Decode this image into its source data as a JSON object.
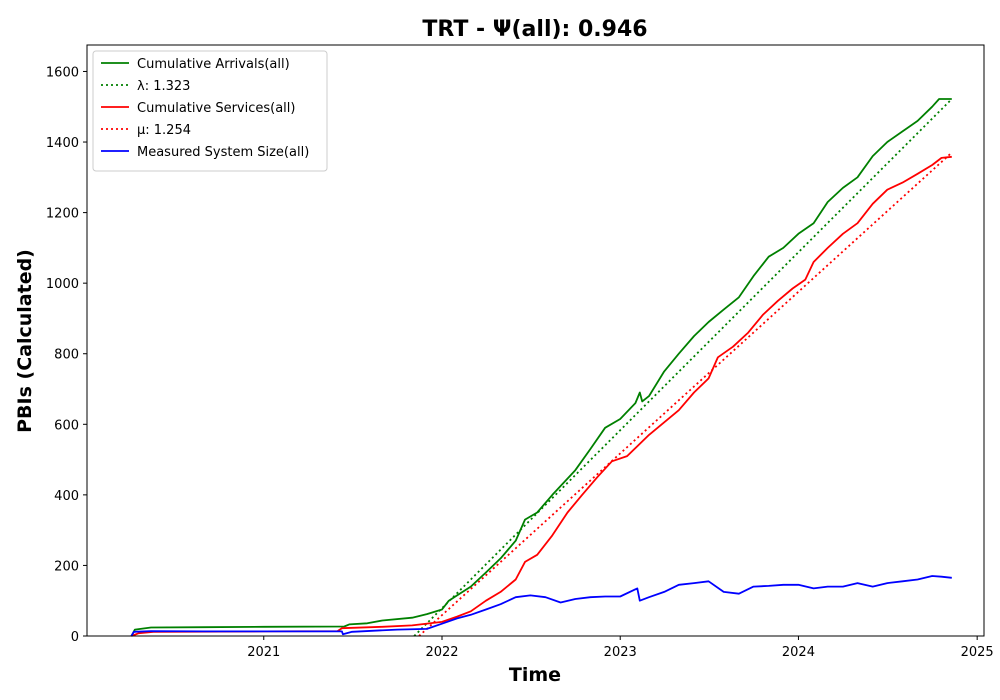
{
  "chart_data": {
    "type": "line",
    "title": "TRT -  Ψ(all): 0.946",
    "xlabel": "Time",
    "ylabel": "PBIs (Calculated)",
    "x_ticks": [
      "2021",
      "2022",
      "2023",
      "2024",
      "2025"
    ],
    "y_ticks": [
      "0",
      "200",
      "400",
      "600",
      "800",
      "1000",
      "1200",
      "1400",
      "1600"
    ],
    "xlim": [
      "2020-01-05",
      "2025-01-15"
    ],
    "ylim": [
      0,
      1675
    ],
    "grid": false,
    "legend_position": "upper-left",
    "series": [
      {
        "name": "Cumulative Arrivals(all)",
        "color": "#008000",
        "style": "solid",
        "points": [
          [
            "2020-04-05",
            0
          ],
          [
            "2020-04-12",
            18
          ],
          [
            "2020-05-15",
            24
          ],
          [
            "2020-09-01",
            25
          ],
          [
            "2021-01-01",
            26
          ],
          [
            "2021-06-15",
            27
          ],
          [
            "2021-06-25",
            33
          ],
          [
            "2021-08-01",
            36
          ],
          [
            "2021-09-01",
            44
          ],
          [
            "2021-11-01",
            52
          ],
          [
            "2021-12-01",
            62
          ],
          [
            "2022-01-01",
            75
          ],
          [
            "2022-01-15",
            100
          ],
          [
            "2022-02-01",
            115
          ],
          [
            "2022-03-01",
            140
          ],
          [
            "2022-04-01",
            180
          ],
          [
            "2022-05-01",
            220
          ],
          [
            "2022-06-01",
            270
          ],
          [
            "2022-06-20",
            330
          ],
          [
            "2022-07-15",
            350
          ],
          [
            "2022-08-15",
            400
          ],
          [
            "2022-10-01",
            470
          ],
          [
            "2022-11-01",
            530
          ],
          [
            "2022-12-01",
            590
          ],
          [
            "2023-01-01",
            615
          ],
          [
            "2023-02-01",
            660
          ],
          [
            "2023-02-10",
            690
          ],
          [
            "2023-02-15",
            665
          ],
          [
            "2023-03-01",
            680
          ],
          [
            "2023-04-01",
            750
          ],
          [
            "2023-05-01",
            800
          ],
          [
            "2023-06-01",
            850
          ],
          [
            "2023-07-01",
            890
          ],
          [
            "2023-08-01",
            925
          ],
          [
            "2023-09-01",
            960
          ],
          [
            "2023-10-01",
            1020
          ],
          [
            "2023-11-01",
            1075
          ],
          [
            "2023-12-01",
            1100
          ],
          [
            "2024-01-01",
            1140
          ],
          [
            "2024-02-01",
            1170
          ],
          [
            "2024-03-01",
            1230
          ],
          [
            "2024-04-01",
            1270
          ],
          [
            "2024-05-01",
            1300
          ],
          [
            "2024-06-01",
            1360
          ],
          [
            "2024-07-01",
            1400
          ],
          [
            "2024-08-01",
            1430
          ],
          [
            "2024-09-01",
            1460
          ],
          [
            "2024-10-01",
            1500
          ],
          [
            "2024-10-15",
            1522
          ],
          [
            "2024-11-10",
            1522
          ]
        ]
      },
      {
        "name": "λ: 1.323",
        "color": "#008000",
        "style": "dotted",
        "points": [
          [
            "2021-11-05",
            0
          ],
          [
            "2024-11-10",
            1522
          ]
        ]
      },
      {
        "name": "Cumulative Services(all)",
        "color": "#ff0000",
        "style": "solid",
        "points": [
          [
            "2020-04-05",
            0
          ],
          [
            "2020-04-20",
            8
          ],
          [
            "2020-05-20",
            12
          ],
          [
            "2021-01-01",
            13
          ],
          [
            "2021-06-01",
            14
          ],
          [
            "2021-06-10",
            22
          ],
          [
            "2021-09-01",
            26
          ],
          [
            "2021-11-01",
            30
          ],
          [
            "2022-01-01",
            40
          ],
          [
            "2022-02-01",
            55
          ],
          [
            "2022-03-01",
            70
          ],
          [
            "2022-04-01",
            100
          ],
          [
            "2022-05-01",
            125
          ],
          [
            "2022-06-01",
            160
          ],
          [
            "2022-06-20",
            210
          ],
          [
            "2022-07-15",
            230
          ],
          [
            "2022-08-15",
            285
          ],
          [
            "2022-09-15",
            350
          ],
          [
            "2022-10-15",
            400
          ],
          [
            "2022-11-15",
            450
          ],
          [
            "2022-12-15",
            495
          ],
          [
            "2023-01-15",
            510
          ],
          [
            "2023-03-01",
            570
          ],
          [
            "2023-05-01",
            640
          ],
          [
            "2023-06-01",
            690
          ],
          [
            "2023-07-01",
            730
          ],
          [
            "2023-07-20",
            790
          ],
          [
            "2023-08-20",
            820
          ],
          [
            "2023-09-20",
            860
          ],
          [
            "2023-10-20",
            910
          ],
          [
            "2023-11-20",
            950
          ],
          [
            "2023-12-20",
            985
          ],
          [
            "2024-01-15",
            1010
          ],
          [
            "2024-02-01",
            1060
          ],
          [
            "2024-03-01",
            1100
          ],
          [
            "2024-04-01",
            1140
          ],
          [
            "2024-05-01",
            1170
          ],
          [
            "2024-06-01",
            1225
          ],
          [
            "2024-07-01",
            1265
          ],
          [
            "2024-08-01",
            1285
          ],
          [
            "2024-09-01",
            1310
          ],
          [
            "2024-10-01",
            1335
          ],
          [
            "2024-10-20",
            1355
          ],
          [
            "2024-11-10",
            1358
          ]
        ]
      },
      {
        "name": "μ: 1.254",
        "color": "#ff0000",
        "style": "dotted",
        "points": [
          [
            "2021-11-15",
            0
          ],
          [
            "2024-11-10",
            1370
          ]
        ]
      },
      {
        "name": "Measured System Size(all)",
        "color": "#0000ff",
        "style": "solid",
        "points": [
          [
            "2020-04-05",
            0
          ],
          [
            "2020-04-10",
            12
          ],
          [
            "2020-05-15",
            14
          ],
          [
            "2020-09-01",
            13
          ],
          [
            "2021-01-01",
            13
          ],
          [
            "2021-06-10",
            13
          ],
          [
            "2021-06-12",
            5
          ],
          [
            "2021-07-01",
            12
          ],
          [
            "2021-10-01",
            18
          ],
          [
            "2021-12-01",
            20
          ],
          [
            "2022-01-01",
            35
          ],
          [
            "2022-02-01",
            50
          ],
          [
            "2022-03-01",
            60
          ],
          [
            "2022-04-01",
            75
          ],
          [
            "2022-05-01",
            90
          ],
          [
            "2022-06-01",
            110
          ],
          [
            "2022-07-01",
            115
          ],
          [
            "2022-08-01",
            110
          ],
          [
            "2022-09-01",
            95
          ],
          [
            "2022-10-01",
            105
          ],
          [
            "2022-11-01",
            110
          ],
          [
            "2022-12-01",
            112
          ],
          [
            "2023-01-01",
            112
          ],
          [
            "2023-02-05",
            135
          ],
          [
            "2023-02-10",
            100
          ],
          [
            "2023-03-01",
            110
          ],
          [
            "2023-04-01",
            125
          ],
          [
            "2023-05-01",
            145
          ],
          [
            "2023-06-01",
            150
          ],
          [
            "2023-07-01",
            155
          ],
          [
            "2023-08-01",
            125
          ],
          [
            "2023-09-01",
            120
          ],
          [
            "2023-10-01",
            140
          ],
          [
            "2023-11-01",
            142
          ],
          [
            "2023-12-01",
            145
          ],
          [
            "2024-01-01",
            145
          ],
          [
            "2024-02-01",
            135
          ],
          [
            "2024-03-01",
            140
          ],
          [
            "2024-04-01",
            140
          ],
          [
            "2024-05-01",
            150
          ],
          [
            "2024-06-01",
            140
          ],
          [
            "2024-07-01",
            150
          ],
          [
            "2024-08-01",
            155
          ],
          [
            "2024-09-01",
            160
          ],
          [
            "2024-10-01",
            170
          ],
          [
            "2024-10-20",
            168
          ],
          [
            "2024-11-10",
            165
          ]
        ]
      }
    ]
  }
}
